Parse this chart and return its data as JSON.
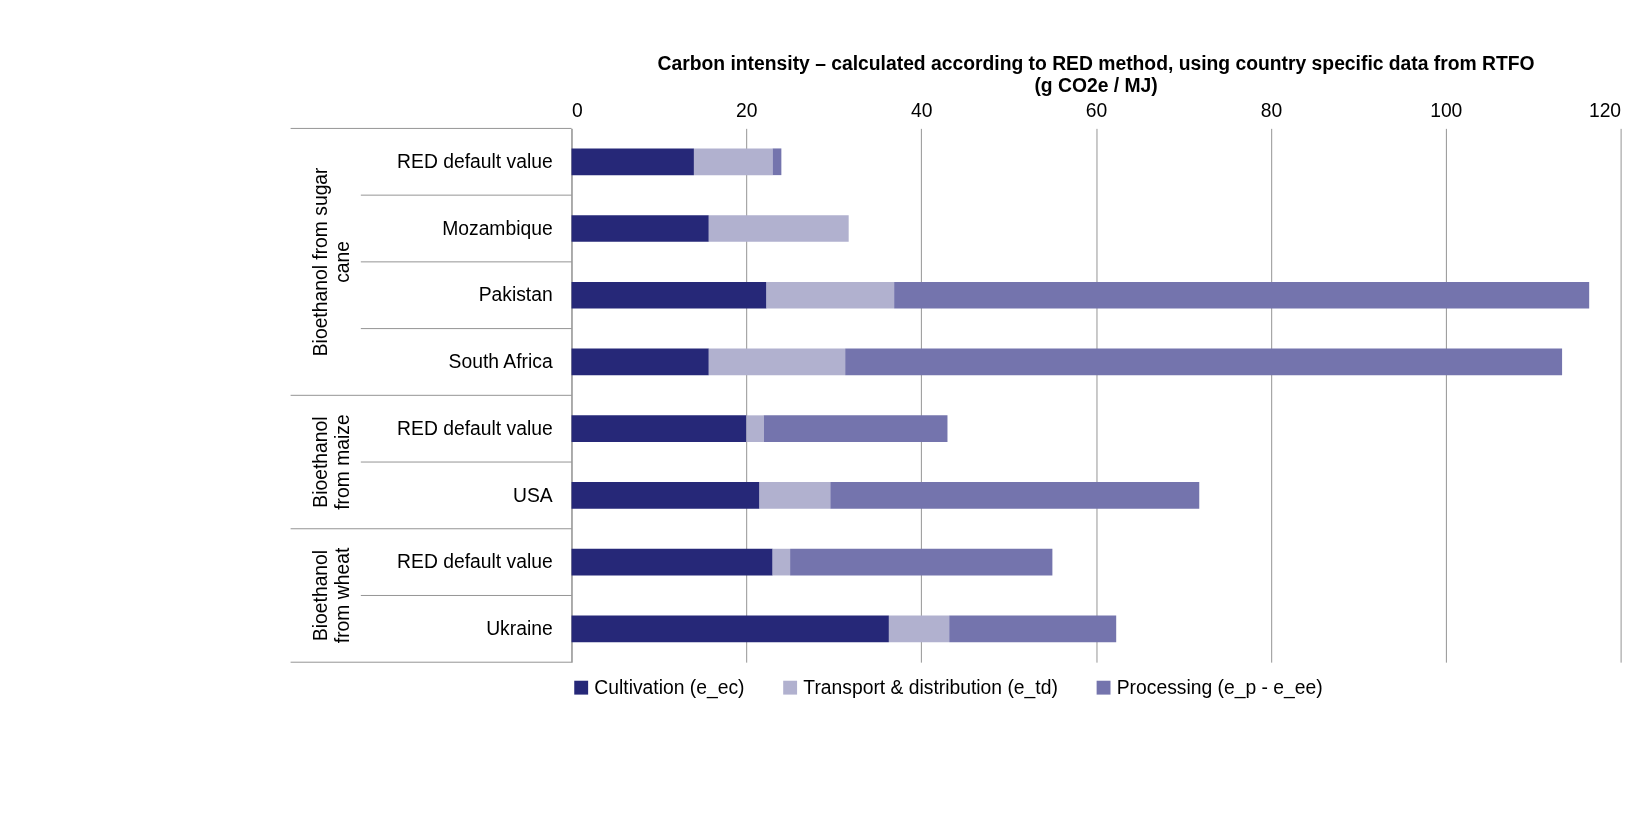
{
  "chart_data": {
    "type": "bar",
    "orientation": "horizontal",
    "stacked": true,
    "title": "Carbon intensity – calculated according to RED method, using country specific data from RTFO",
    "subtitle": "(g CO2e / MJ)",
    "categories": [
      "RED default value",
      "Mozambique",
      "Pakistan",
      "South Africa",
      "RED default value",
      "USA",
      "RED default value",
      "Ukraine"
    ],
    "series": [
      {
        "name": "Cultivation (e_ec)",
        "color": "#262878",
        "values": [
          14,
          15.7,
          22.3,
          15.7,
          20,
          21.5,
          23,
          36.3
        ]
      },
      {
        "name": "Transport & distribution (e_td)",
        "color": "#b1b1cf",
        "values": [
          9,
          16,
          14.6,
          15.6,
          2,
          8.1,
          2,
          6.9
        ]
      },
      {
        "name": "Processing (e_p - e_ee)",
        "color": "#7474ad",
        "values": [
          1,
          0,
          79.5,
          82,
          21,
          42.2,
          30,
          19.1
        ]
      }
    ],
    "annotations": [
      "Bioethanol from sugar cane",
      "Bioethanol from maize",
      "Bioethanol from wheat"
    ],
    "xlim": [
      0,
      120
    ],
    "xticks": [
      0,
      20,
      40,
      60,
      80,
      100,
      120
    ],
    "grid": "x",
    "legend": "bottom"
  }
}
